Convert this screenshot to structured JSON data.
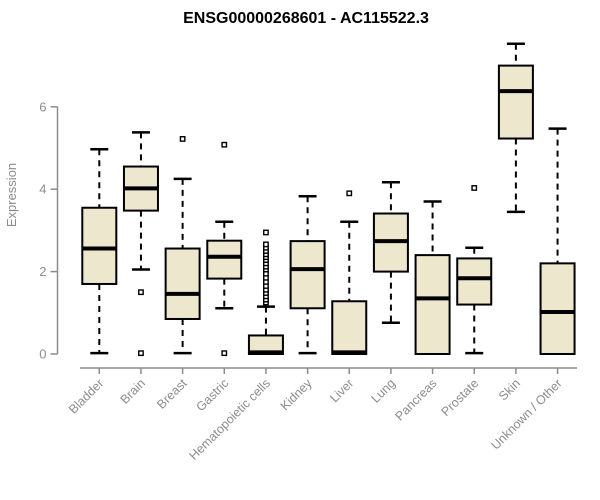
{
  "colors": {
    "box_fill": "#EDE7CE",
    "box_stroke": "#000000",
    "axis": "#8C8C8C",
    "tick_text": "#8C8C8C",
    "title_text": "#000000",
    "background": "#FFFFFF"
  },
  "chart_data": {
    "type": "boxplot",
    "title": "ENSG00000268601 - AC115522.3",
    "xlabel": "",
    "ylabel": "Expression",
    "yticks": [
      0,
      2,
      4,
      6
    ],
    "ytick_labels": [
      "0",
      "2",
      "4",
      "6"
    ],
    "ylim": [
      0,
      7.8
    ],
    "grid": false,
    "legend": "none",
    "categories": [
      "Bladder",
      "Brain",
      "Breast",
      "Gastric",
      "Hematopoietic cells",
      "Kidney",
      "Liver",
      "Lung",
      "Pancreas",
      "Prostate",
      "Skin",
      "Unknown / Other"
    ],
    "series": [
      {
        "name": "Bladder",
        "min": 0.02,
        "q1": 1.7,
        "median": 2.56,
        "q3": 3.55,
        "max": 4.97,
        "outliers": []
      },
      {
        "name": "Brain",
        "min": 2.05,
        "q1": 3.48,
        "median": 4.02,
        "q3": 4.55,
        "max": 5.38,
        "outliers": [
          1.5,
          0.02
        ]
      },
      {
        "name": "Breast",
        "min": 0.02,
        "q1": 0.85,
        "median": 1.46,
        "q3": 2.56,
        "max": 4.25,
        "outliers": [
          5.22
        ]
      },
      {
        "name": "Gastric",
        "min": 1.11,
        "q1": 1.83,
        "median": 2.36,
        "q3": 2.75,
        "max": 3.21,
        "outliers": [
          5.08,
          0.02
        ]
      },
      {
        "name": "Hematopoietic cells",
        "min": 0.0,
        "q1": 0.0,
        "median": 0.04,
        "q3": 0.45,
        "max": 1.15,
        "outliers": [
          1.25,
          1.32,
          1.4,
          1.48,
          1.56,
          1.65,
          1.75,
          1.85,
          1.95,
          2.05,
          2.12,
          2.2,
          2.28,
          2.35,
          2.42,
          2.5,
          2.58,
          2.66,
          2.95
        ]
      },
      {
        "name": "Kidney",
        "min": 0.02,
        "q1": 1.11,
        "median": 2.06,
        "q3": 2.74,
        "max": 3.83,
        "outliers": []
      },
      {
        "name": "Liver",
        "min": 0.0,
        "q1": 0.0,
        "median": 0.04,
        "q3": 1.28,
        "max": 3.21,
        "outliers": [
          3.9
        ]
      },
      {
        "name": "Lung",
        "min": 0.76,
        "q1": 2.0,
        "median": 2.74,
        "q3": 3.41,
        "max": 4.17,
        "outliers": []
      },
      {
        "name": "Pancreas",
        "min": 0.0,
        "q1": 0.0,
        "median": 1.35,
        "q3": 2.4,
        "max": 3.7,
        "outliers": []
      },
      {
        "name": "Prostate",
        "min": 0.02,
        "q1": 1.2,
        "median": 1.84,
        "q3": 2.32,
        "max": 2.58,
        "outliers": [
          4.03
        ]
      },
      {
        "name": "Skin",
        "min": 3.45,
        "q1": 5.23,
        "median": 6.38,
        "q3": 7.0,
        "max": 7.53,
        "outliers": []
      },
      {
        "name": "Unknown / Other",
        "min": 0.0,
        "q1": 0.0,
        "median": 1.02,
        "q3": 2.2,
        "max": 5.47,
        "outliers": []
      }
    ]
  }
}
